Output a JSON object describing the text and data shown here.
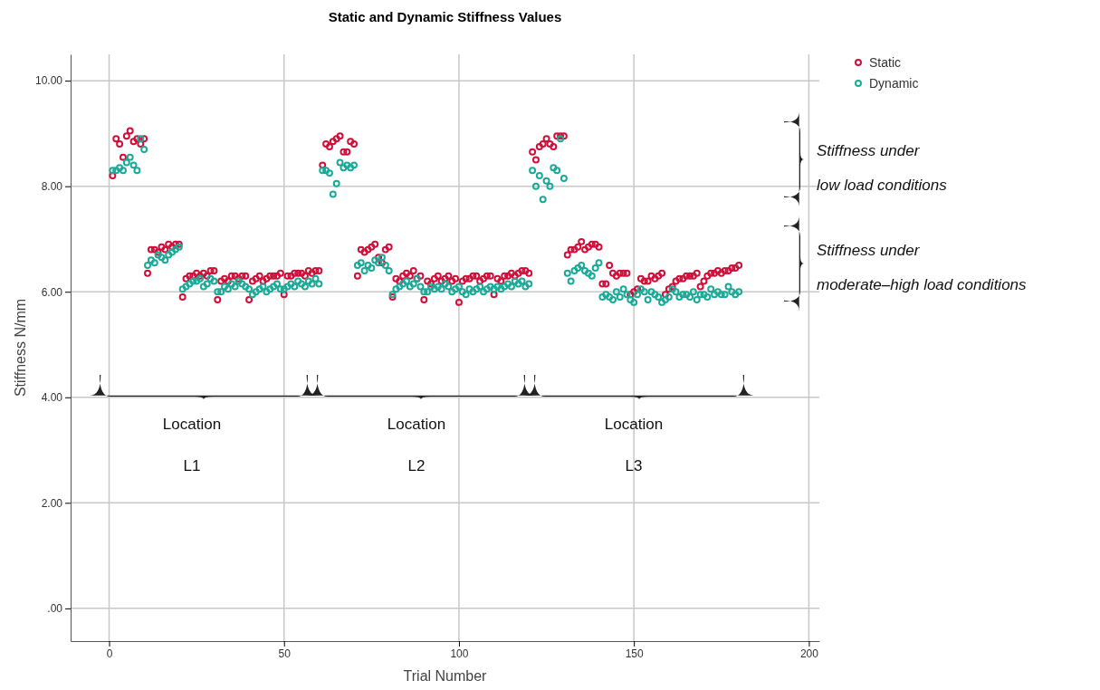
{
  "chart_data": {
    "type": "scatter",
    "title": "Static and Dynamic Stiffness Values",
    "xlabel": "Trial Number",
    "ylabel": "Stiffness N/mm",
    "x": [
      1,
      2,
      3,
      4,
      5,
      6,
      7,
      8,
      9,
      10,
      11,
      12,
      13,
      14,
      15,
      16,
      17,
      18,
      19,
      20,
      21,
      22,
      23,
      24,
      25,
      26,
      27,
      28,
      29,
      30,
      31,
      32,
      33,
      34,
      35,
      36,
      37,
      38,
      39,
      40,
      41,
      42,
      43,
      44,
      45,
      46,
      47,
      48,
      49,
      50,
      51,
      52,
      53,
      54,
      55,
      56,
      57,
      58,
      59,
      60,
      61,
      62,
      63,
      64,
      65,
      66,
      67,
      68,
      69,
      70,
      71,
      72,
      73,
      74,
      75,
      76,
      77,
      78,
      79,
      80,
      81,
      82,
      83,
      84,
      85,
      86,
      87,
      88,
      89,
      90,
      91,
      92,
      93,
      94,
      95,
      96,
      97,
      98,
      99,
      100,
      101,
      102,
      103,
      104,
      105,
      106,
      107,
      108,
      109,
      110,
      111,
      112,
      113,
      114,
      115,
      116,
      117,
      118,
      119,
      120,
      121,
      122,
      123,
      124,
      125,
      126,
      127,
      128,
      129,
      130,
      131,
      132,
      133,
      134,
      135,
      136,
      137,
      138,
      139,
      140,
      141,
      142,
      143,
      144,
      145,
      146,
      147,
      148,
      149,
      150,
      151,
      152,
      153,
      154,
      155,
      156,
      157,
      158,
      159,
      160,
      161,
      162,
      163,
      164,
      165,
      166,
      167,
      168,
      169,
      170,
      171,
      172,
      173,
      174,
      175,
      176,
      177,
      178,
      179,
      180
    ],
    "series": [
      {
        "name": "Static",
        "color": "#d0103a",
        "values": [
          8.2,
          8.9,
          8.8,
          8.55,
          8.95,
          9.05,
          8.85,
          8.9,
          8.8,
          8.9,
          6.35,
          6.8,
          6.8,
          6.75,
          6.85,
          6.8,
          6.9,
          6.85,
          6.9,
          6.9,
          5.9,
          6.25,
          6.3,
          6.3,
          6.35,
          6.3,
          6.35,
          6.3,
          6.4,
          6.4,
          5.85,
          6.2,
          6.25,
          6.2,
          6.3,
          6.3,
          6.25,
          6.3,
          6.3,
          5.85,
          6.2,
          6.25,
          6.3,
          6.2,
          6.25,
          6.3,
          6.3,
          6.3,
          6.35,
          5.95,
          6.3,
          6.3,
          6.35,
          6.35,
          6.35,
          6.3,
          6.4,
          6.35,
          6.4,
          6.4,
          8.4,
          8.8,
          8.75,
          8.85,
          8.9,
          8.95,
          8.65,
          8.65,
          8.85,
          8.8,
          6.3,
          6.8,
          6.75,
          6.8,
          6.85,
          6.9,
          6.65,
          6.55,
          6.8,
          6.85,
          5.9,
          6.25,
          6.2,
          6.3,
          6.35,
          6.3,
          6.4,
          6.25,
          6.3,
          5.85,
          6.2,
          6.15,
          6.25,
          6.3,
          6.2,
          6.25,
          6.3,
          6.2,
          6.25,
          5.8,
          6.2,
          6.25,
          6.25,
          6.3,
          6.3,
          6.2,
          6.25,
          6.3,
          6.3,
          5.95,
          6.25,
          6.2,
          6.3,
          6.3,
          6.35,
          6.3,
          6.35,
          6.4,
          6.4,
          6.35,
          8.65,
          8.5,
          8.75,
          8.8,
          8.9,
          8.8,
          8.75,
          8.95,
          8.95,
          8.95,
          6.7,
          6.8,
          6.8,
          6.85,
          6.95,
          6.8,
          6.85,
          6.9,
          6.9,
          6.85,
          6.15,
          6.15,
          6.5,
          6.35,
          6.3,
          6.35,
          6.35,
          6.35,
          5.95,
          6.0,
          6.05,
          6.25,
          6.2,
          6.2,
          6.3,
          6.25,
          6.3,
          6.35,
          5.95,
          6.05,
          6.1,
          6.2,
          6.25,
          6.25,
          6.3,
          6.3,
          6.3,
          6.35,
          6.1,
          6.2,
          6.3,
          6.35,
          6.35,
          6.4,
          6.35,
          6.4,
          6.4,
          6.45,
          6.45,
          6.5
        ]
      },
      {
        "name": "Dynamic",
        "color": "#1aaa98",
        "values": [
          8.3,
          8.3,
          8.35,
          8.3,
          8.45,
          8.55,
          8.4,
          8.3,
          8.9,
          8.7,
          6.5,
          6.6,
          6.55,
          6.7,
          6.65,
          6.6,
          6.7,
          6.75,
          6.8,
          6.85,
          6.05,
          6.1,
          6.15,
          6.2,
          6.2,
          6.25,
          6.1,
          6.15,
          6.25,
          6.2,
          6.0,
          6.0,
          6.1,
          6.05,
          6.15,
          6.1,
          6.2,
          6.15,
          6.1,
          6.05,
          5.95,
          6.0,
          6.05,
          6.1,
          6.0,
          6.05,
          6.1,
          6.15,
          6.05,
          6.05,
          6.1,
          6.15,
          6.1,
          6.2,
          6.15,
          6.1,
          6.2,
          6.15,
          6.25,
          6.15,
          8.3,
          8.3,
          8.25,
          7.85,
          8.05,
          8.45,
          8.35,
          8.4,
          8.35,
          8.4,
          6.5,
          6.55,
          6.4,
          6.5,
          6.45,
          6.6,
          6.55,
          6.65,
          6.5,
          6.4,
          5.95,
          6.05,
          6.1,
          6.15,
          6.2,
          6.1,
          6.15,
          6.25,
          6.1,
          6.0,
          6.0,
          6.1,
          6.05,
          6.1,
          6.05,
          6.15,
          6.1,
          6.0,
          6.05,
          6.1,
          6.0,
          5.95,
          6.05,
          6.0,
          6.05,
          6.1,
          6.0,
          6.05,
          6.1,
          6.05,
          6.1,
          6.05,
          6.1,
          6.15,
          6.1,
          6.2,
          6.15,
          6.2,
          6.1,
          6.15,
          8.3,
          8.0,
          8.2,
          7.75,
          8.1,
          8.0,
          8.35,
          8.3,
          8.9,
          8.15,
          6.35,
          6.2,
          6.4,
          6.45,
          6.5,
          6.4,
          6.35,
          6.3,
          6.45,
          6.55,
          5.9,
          5.95,
          5.9,
          5.85,
          6.0,
          5.9,
          6.05,
          5.95,
          5.85,
          5.8,
          5.95,
          6.05,
          6.0,
          5.85,
          6.0,
          5.95,
          5.9,
          5.8,
          5.85,
          5.9,
          6.05,
          6.0,
          5.9,
          5.95,
          5.95,
          5.9,
          6.0,
          5.85,
          5.95,
          5.95,
          5.9,
          6.05,
          5.95,
          6.0,
          5.95,
          5.95,
          6.1,
          6.0,
          5.95,
          6.0
        ]
      }
    ],
    "xlim": [
      -11,
      203
    ],
    "xticks": [
      0,
      50,
      100,
      150,
      200
    ],
    "ylim": [
      -0.62,
      10.5
    ],
    "yticks": [
      {
        "value": 0,
        "label": ".00"
      },
      {
        "value": 2,
        "label": "2.00"
      },
      {
        "value": 4,
        "label": "4.00"
      },
      {
        "value": 6,
        "label": "6.00"
      },
      {
        "value": 8,
        "label": "8.00"
      },
      {
        "value": 10,
        "label": "10.00"
      }
    ],
    "grid": true,
    "legend": "top right",
    "marker": "circle",
    "annotations": [
      "Stiffness under\nlow load conditions",
      "Stiffness under\nmoderate–high load conditions",
      "Location\nL1",
      "Location\nL2",
      "Location\nL3"
    ]
  }
}
